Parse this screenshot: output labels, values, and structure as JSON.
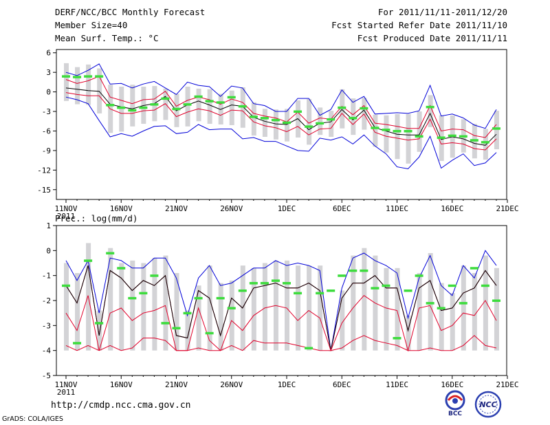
{
  "header": {
    "title": "DERF/NCC/BCC Monthly Forecast",
    "member_size": "Member Size=40",
    "variable": "Mean Surf. Temp.: °C",
    "period": "For 2011/11/11-2011/12/20",
    "start_date": "Fcst Started Refer Date 2011/11/10",
    "produced_date": "Fcst Produced Date 2011/11/11"
  },
  "footer": {
    "url": "http://cmdp.ncc.cma.gov.cn",
    "grads_credit": "GrADS: COLA/IGES",
    "logo_left_text": "BCC",
    "logo_right_text": "NCC"
  },
  "colors": {
    "box": "#d3d3d6",
    "median": "#000000",
    "percentile": "#e0002a",
    "extreme": "#0000d8",
    "observed": "#3ddc3d"
  },
  "chart_data": [
    {
      "type": "line",
      "title": "Mean Surf. Temp.: °C",
      "ylim": [
        -16.5,
        6.5
      ],
      "yticks": [
        6,
        3,
        0,
        -3,
        -6,
        -9,
        -12,
        -15
      ],
      "xtick_labels": [
        "11NOV",
        "16NOV",
        "21NOV",
        "26NOV",
        "1DEC",
        "6DEC",
        "11DEC",
        "16DEC",
        "21DEC"
      ],
      "xtick_days": [
        0,
        5,
        10,
        15,
        20,
        25,
        30,
        35,
        40
      ],
      "year_label": "2011",
      "days": [
        0,
        1,
        2,
        3,
        4,
        5,
        6,
        7,
        8,
        9,
        10,
        11,
        12,
        13,
        14,
        15,
        16,
        17,
        18,
        19,
        20,
        21,
        22,
        23,
        24,
        25,
        26,
        27,
        28,
        29,
        30,
        31,
        32,
        33,
        34,
        35,
        36,
        37,
        38,
        39
      ],
      "series": [
        {
          "name": "ensemble max",
          "values": [
            3,
            2.5,
            3.3,
            4.3,
            1.2,
            1.3,
            0.6,
            1.2,
            1.6,
            0.6,
            -0.4,
            1.5,
            1.0,
            0.8,
            -0.7,
            0.9,
            0.6,
            -1.8,
            -2.1,
            -3.0,
            -3.0,
            -1.0,
            -1.0,
            -3.6,
            -2.7,
            0.3,
            -1.6,
            -0.7,
            -3.4,
            -3.3,
            -3.2,
            -3.3,
            -2.9,
            1.0,
            -3.7,
            -3.4,
            -4.0,
            -5.1,
            -5.6,
            -2.7
          ]
        },
        {
          "name": "upper percentile",
          "values": [
            1.9,
            1.3,
            1.7,
            2.4,
            -0.8,
            -1.3,
            -1.8,
            -1.2,
            -1.1,
            0.1,
            -2.2,
            -1.3,
            -0.8,
            -1.2,
            -1.9,
            -1.1,
            -1.6,
            -3.3,
            -3.7,
            -4.0,
            -4.6,
            -3.1,
            -4.8,
            -4.0,
            -4.2,
            -2.2,
            -3.5,
            -2.1,
            -4.8,
            -5.0,
            -5.3,
            -5.6,
            -5.6,
            -2.1,
            -6.0,
            -5.7,
            -5.8,
            -6.7,
            -7.0,
            -5.0
          ]
        },
        {
          "name": "median",
          "values": [
            0.6,
            0.4,
            0.2,
            0.1,
            -1.9,
            -2.3,
            -2.6,
            -2.1,
            -1.8,
            -0.7,
            -2.9,
            -2.0,
            -1.4,
            -2.0,
            -2.7,
            -2.0,
            -2.2,
            -3.9,
            -4.5,
            -4.9,
            -5.0,
            -4.1,
            -5.8,
            -4.8,
            -4.6,
            -2.7,
            -4.3,
            -2.8,
            -5.5,
            -6.0,
            -6.5,
            -6.6,
            -6.6,
            -3.3,
            -7.3,
            -6.9,
            -7.2,
            -7.9,
            -8.2,
            -6.5
          ]
        },
        {
          "name": "lower percentile",
          "values": [
            -0.1,
            -0.4,
            -0.6,
            -0.6,
            -2.6,
            -3.3,
            -3.3,
            -2.9,
            -2.8,
            -1.8,
            -3.8,
            -3.1,
            -2.6,
            -2.9,
            -3.6,
            -2.8,
            -2.9,
            -4.6,
            -5.2,
            -5.5,
            -6.1,
            -5.3,
            -6.6,
            -5.7,
            -5.6,
            -3.3,
            -5.0,
            -3.4,
            -6.2,
            -6.8,
            -7.1,
            -7.4,
            -7.2,
            -4.2,
            -8.0,
            -7.8,
            -8.0,
            -8.7,
            -8.9,
            -7.2
          ]
        },
        {
          "name": "ensemble min",
          "values": [
            -0.8,
            -1.2,
            -1.8,
            -4.4,
            -6.9,
            -6.4,
            -6.8,
            -6.0,
            -5.3,
            -5.2,
            -6.4,
            -6.2,
            -5.0,
            -5.8,
            -5.7,
            -5.7,
            -7.2,
            -7.0,
            -7.6,
            -7.6,
            -8.3,
            -9.0,
            -9.1,
            -7.1,
            -7.4,
            -6.9,
            -8.0,
            -6.6,
            -8.3,
            -9.5,
            -11.5,
            -11.8,
            -10.0,
            -6.8,
            -11.7,
            -10.5,
            -9.5,
            -11.3,
            -10.9,
            -9.3
          ]
        },
        {
          "name": "box top",
          "values": [
            4.4,
            3.8,
            4.2,
            3.6,
            1.1,
            0.8,
            1.1,
            0.8,
            0.9,
            0.5,
            -0.3,
            0.8,
            0.5,
            0.4,
            -0.3,
            0.2,
            0.7,
            -1.6,
            -2.6,
            -2.7,
            -2.6,
            -1.3,
            -1.1,
            -2.4,
            -2.9,
            0.4,
            -1.0,
            -0.9,
            -3.5,
            -3.6,
            -3.4,
            -3.4,
            -3.0,
            -0.5,
            -3.6,
            -3.6,
            -4.2,
            -4.9,
            -5.7,
            -2.9
          ]
        },
        {
          "name": "box bottom",
          "values": [
            -1.4,
            -1.9,
            -2.0,
            -3.3,
            -6.3,
            -6.1,
            -5.3,
            -4.9,
            -4.5,
            -4.3,
            -5.4,
            -5.3,
            -4.5,
            -4.9,
            -5.0,
            -5.1,
            -5.5,
            -6.7,
            -6.9,
            -7.3,
            -7.6,
            -7.0,
            -8.1,
            -6.6,
            -6.9,
            -5.6,
            -6.6,
            -5.8,
            -8.4,
            -9.3,
            -10.3,
            -11.0,
            -9.2,
            -5.4,
            -10.6,
            -10.1,
            -9.3,
            -10.2,
            -10.4,
            -8.8
          ]
        },
        {
          "name": "observed",
          "values": [
            2.4,
            2.3,
            2.4,
            2.4,
            -2.0,
            -2.4,
            -2.8,
            -2.4,
            -1.9,
            -1.0,
            -2.6,
            -1.9,
            -0.7,
            -1.4,
            -1.6,
            -0.8,
            -2.2,
            -3.8,
            -4.0,
            -4.3,
            -4.7,
            -3.0,
            -5.3,
            -4.8,
            -4.2,
            -2.4,
            -4.0,
            -2.5,
            -5.5,
            -5.8,
            -6.0,
            -6.0,
            -6.8,
            -2.3,
            -7.0,
            -6.7,
            -6.8,
            -7.4,
            -7.7,
            -5.6
          ]
        }
      ]
    },
    {
      "type": "line",
      "title": "Prec.: log(mm/d)",
      "ylim": [
        -5,
        1
      ],
      "yticks": [
        1,
        0,
        -1,
        -2,
        -3,
        -4,
        -5
      ],
      "xtick_labels": [
        "11NOV",
        "16NOV",
        "21NOV",
        "26NOV",
        "1DEC",
        "6DEC",
        "11DEC",
        "16DEC",
        "21DEC"
      ],
      "xtick_days": [
        0,
        5,
        10,
        15,
        20,
        25,
        30,
        35,
        40
      ],
      "year_label": "2011",
      "days": [
        0,
        1,
        2,
        3,
        4,
        5,
        6,
        7,
        8,
        9,
        10,
        11,
        12,
        13,
        14,
        15,
        16,
        17,
        18,
        19,
        20,
        21,
        22,
        23,
        24,
        25,
        26,
        27,
        28,
        29,
        30,
        31,
        32,
        33,
        34,
        35,
        36,
        37,
        38,
        39
      ],
      "series": [
        {
          "name": "ensemble max",
          "values": [
            -0.4,
            -1.2,
            -0.4,
            -2.5,
            -0.3,
            -0.4,
            -0.7,
            -0.7,
            -0.3,
            -0.3,
            -1.1,
            -2.6,
            -1.1,
            -0.6,
            -1.4,
            -1.3,
            -1.0,
            -0.7,
            -0.7,
            -0.4,
            -0.6,
            -0.5,
            -0.6,
            -0.8,
            -4.0,
            -1.5,
            -0.3,
            -0.1,
            -0.4,
            -0.6,
            -0.9,
            -2.7,
            -1.1,
            -0.2,
            -1.4,
            -1.8,
            -0.6,
            -1.1,
            0.0,
            -0.6
          ]
        },
        {
          "name": "upper percentile",
          "values": [
            -1.4,
            -2.1,
            -0.6,
            -3.4,
            -0.8,
            -1.1,
            -1.6,
            -1.2,
            -1.4,
            -1.0,
            -3.4,
            -3.5,
            -1.6,
            -1.9,
            -3.4,
            -1.9,
            -2.3,
            -1.5,
            -1.4,
            -1.3,
            -1.5,
            -1.5,
            -1.3,
            -1.6,
            -4.0,
            -1.9,
            -1.3,
            -1.3,
            -1.0,
            -1.5,
            -1.5,
            -3.2,
            -1.5,
            -1.2,
            -2.4,
            -2.3,
            -1.7,
            -1.5,
            -0.8,
            -1.4
          ]
        },
        {
          "name": "median",
          "values": [
            -1.4,
            -2.1,
            -0.6,
            -3.4,
            -0.8,
            -1.1,
            -1.6,
            -1.2,
            -1.4,
            -1.0,
            -3.4,
            -3.5,
            -1.6,
            -1.9,
            -3.4,
            -1.9,
            -2.3,
            -1.5,
            -1.4,
            -1.3,
            -1.5,
            -1.5,
            -1.3,
            -1.6,
            -4.0,
            -1.9,
            -1.3,
            -1.3,
            -1.0,
            -1.5,
            -1.5,
            -3.2,
            -1.5,
            -1.2,
            -2.4,
            -2.3,
            -1.7,
            -1.5,
            -0.8,
            -1.4
          ]
        },
        {
          "name": "lower percentile",
          "values": [
            -2.5,
            -3.2,
            -1.8,
            -4.0,
            -2.5,
            -2.3,
            -2.8,
            -2.5,
            -2.4,
            -2.2,
            -4.0,
            -4.0,
            -2.3,
            -3.6,
            -4.0,
            -2.8,
            -3.2,
            -2.6,
            -2.3,
            -2.2,
            -2.3,
            -2.8,
            -2.4,
            -2.7,
            -4.0,
            -2.9,
            -2.3,
            -1.8,
            -2.1,
            -2.3,
            -2.4,
            -4.0,
            -2.3,
            -2.2,
            -3.2,
            -3.0,
            -2.5,
            -2.6,
            -2.0,
            -2.8
          ]
        },
        {
          "name": "lower bound",
          "values": [
            -3.8,
            -4.0,
            -3.8,
            -4.0,
            -3.8,
            -4.0,
            -3.9,
            -3.5,
            -3.5,
            -3.6,
            -4.0,
            -4.0,
            -3.9,
            -4.0,
            -4.0,
            -3.8,
            -4.0,
            -3.6,
            -3.7,
            -3.7,
            -3.7,
            -3.8,
            -3.9,
            -4.0,
            -4.0,
            -3.9,
            -3.6,
            -3.4,
            -3.6,
            -3.7,
            -3.8,
            -4.0,
            -4.0,
            -3.9,
            -4.0,
            -4.0,
            -3.8,
            -3.4,
            -3.8,
            -3.9
          ]
        },
        {
          "name": "box top",
          "values": [
            -0.5,
            -0.9,
            0.3,
            -2.4,
            0.1,
            -0.5,
            -0.4,
            -0.5,
            -0.3,
            -0.2,
            -0.9,
            -2.4,
            -1.4,
            -0.6,
            -1.3,
            -1.2,
            -0.6,
            -0.7,
            -0.5,
            -0.4,
            -0.4,
            -0.6,
            -0.6,
            -0.6,
            -4.0,
            -1.6,
            -0.2,
            0.1,
            -0.2,
            -0.7,
            -0.7,
            -2.6,
            -0.9,
            -0.1,
            -1.3,
            -1.7,
            -0.6,
            -0.9,
            -0.2,
            -0.7
          ]
        },
        {
          "name": "box bottom",
          "values": [
            -4.0,
            -4.0,
            -4.0,
            -4.0,
            -4.0,
            -4.0,
            -4.0,
            -4.0,
            -4.0,
            -4.0,
            -4.0,
            -4.0,
            -4.0,
            -4.0,
            -4.0,
            -4.0,
            -4.0,
            -4.0,
            -4.0,
            -4.0,
            -4.0,
            -4.0,
            -4.0,
            -4.0,
            -4.0,
            -4.0,
            -4.0,
            -4.0,
            -4.0,
            -4.0,
            -4.0,
            -4.0,
            -4.0,
            -4.0,
            -4.0,
            -4.0,
            -4.0,
            -4.0,
            -4.0,
            -4.0
          ]
        },
        {
          "name": "observed",
          "values": [
            -1.4,
            -3.7,
            -0.4,
            -2.9,
            -0.1,
            -0.7,
            -1.9,
            -1.7,
            -1.0,
            -2.9,
            -3.1,
            -2.5,
            -1.9,
            -3.3,
            -1.9,
            -2.3,
            -1.6,
            -1.3,
            -1.3,
            -1.2,
            -1.3,
            -1.7,
            -3.9,
            -1.7,
            -1.6,
            -1.0,
            -0.8,
            -0.8,
            -1.5,
            -1.4,
            -3.5,
            -1.6,
            -1.0,
            -2.1,
            -2.3,
            -1.4,
            -2.1,
            -0.7,
            -1.4,
            -2.0
          ]
        }
      ]
    }
  ]
}
